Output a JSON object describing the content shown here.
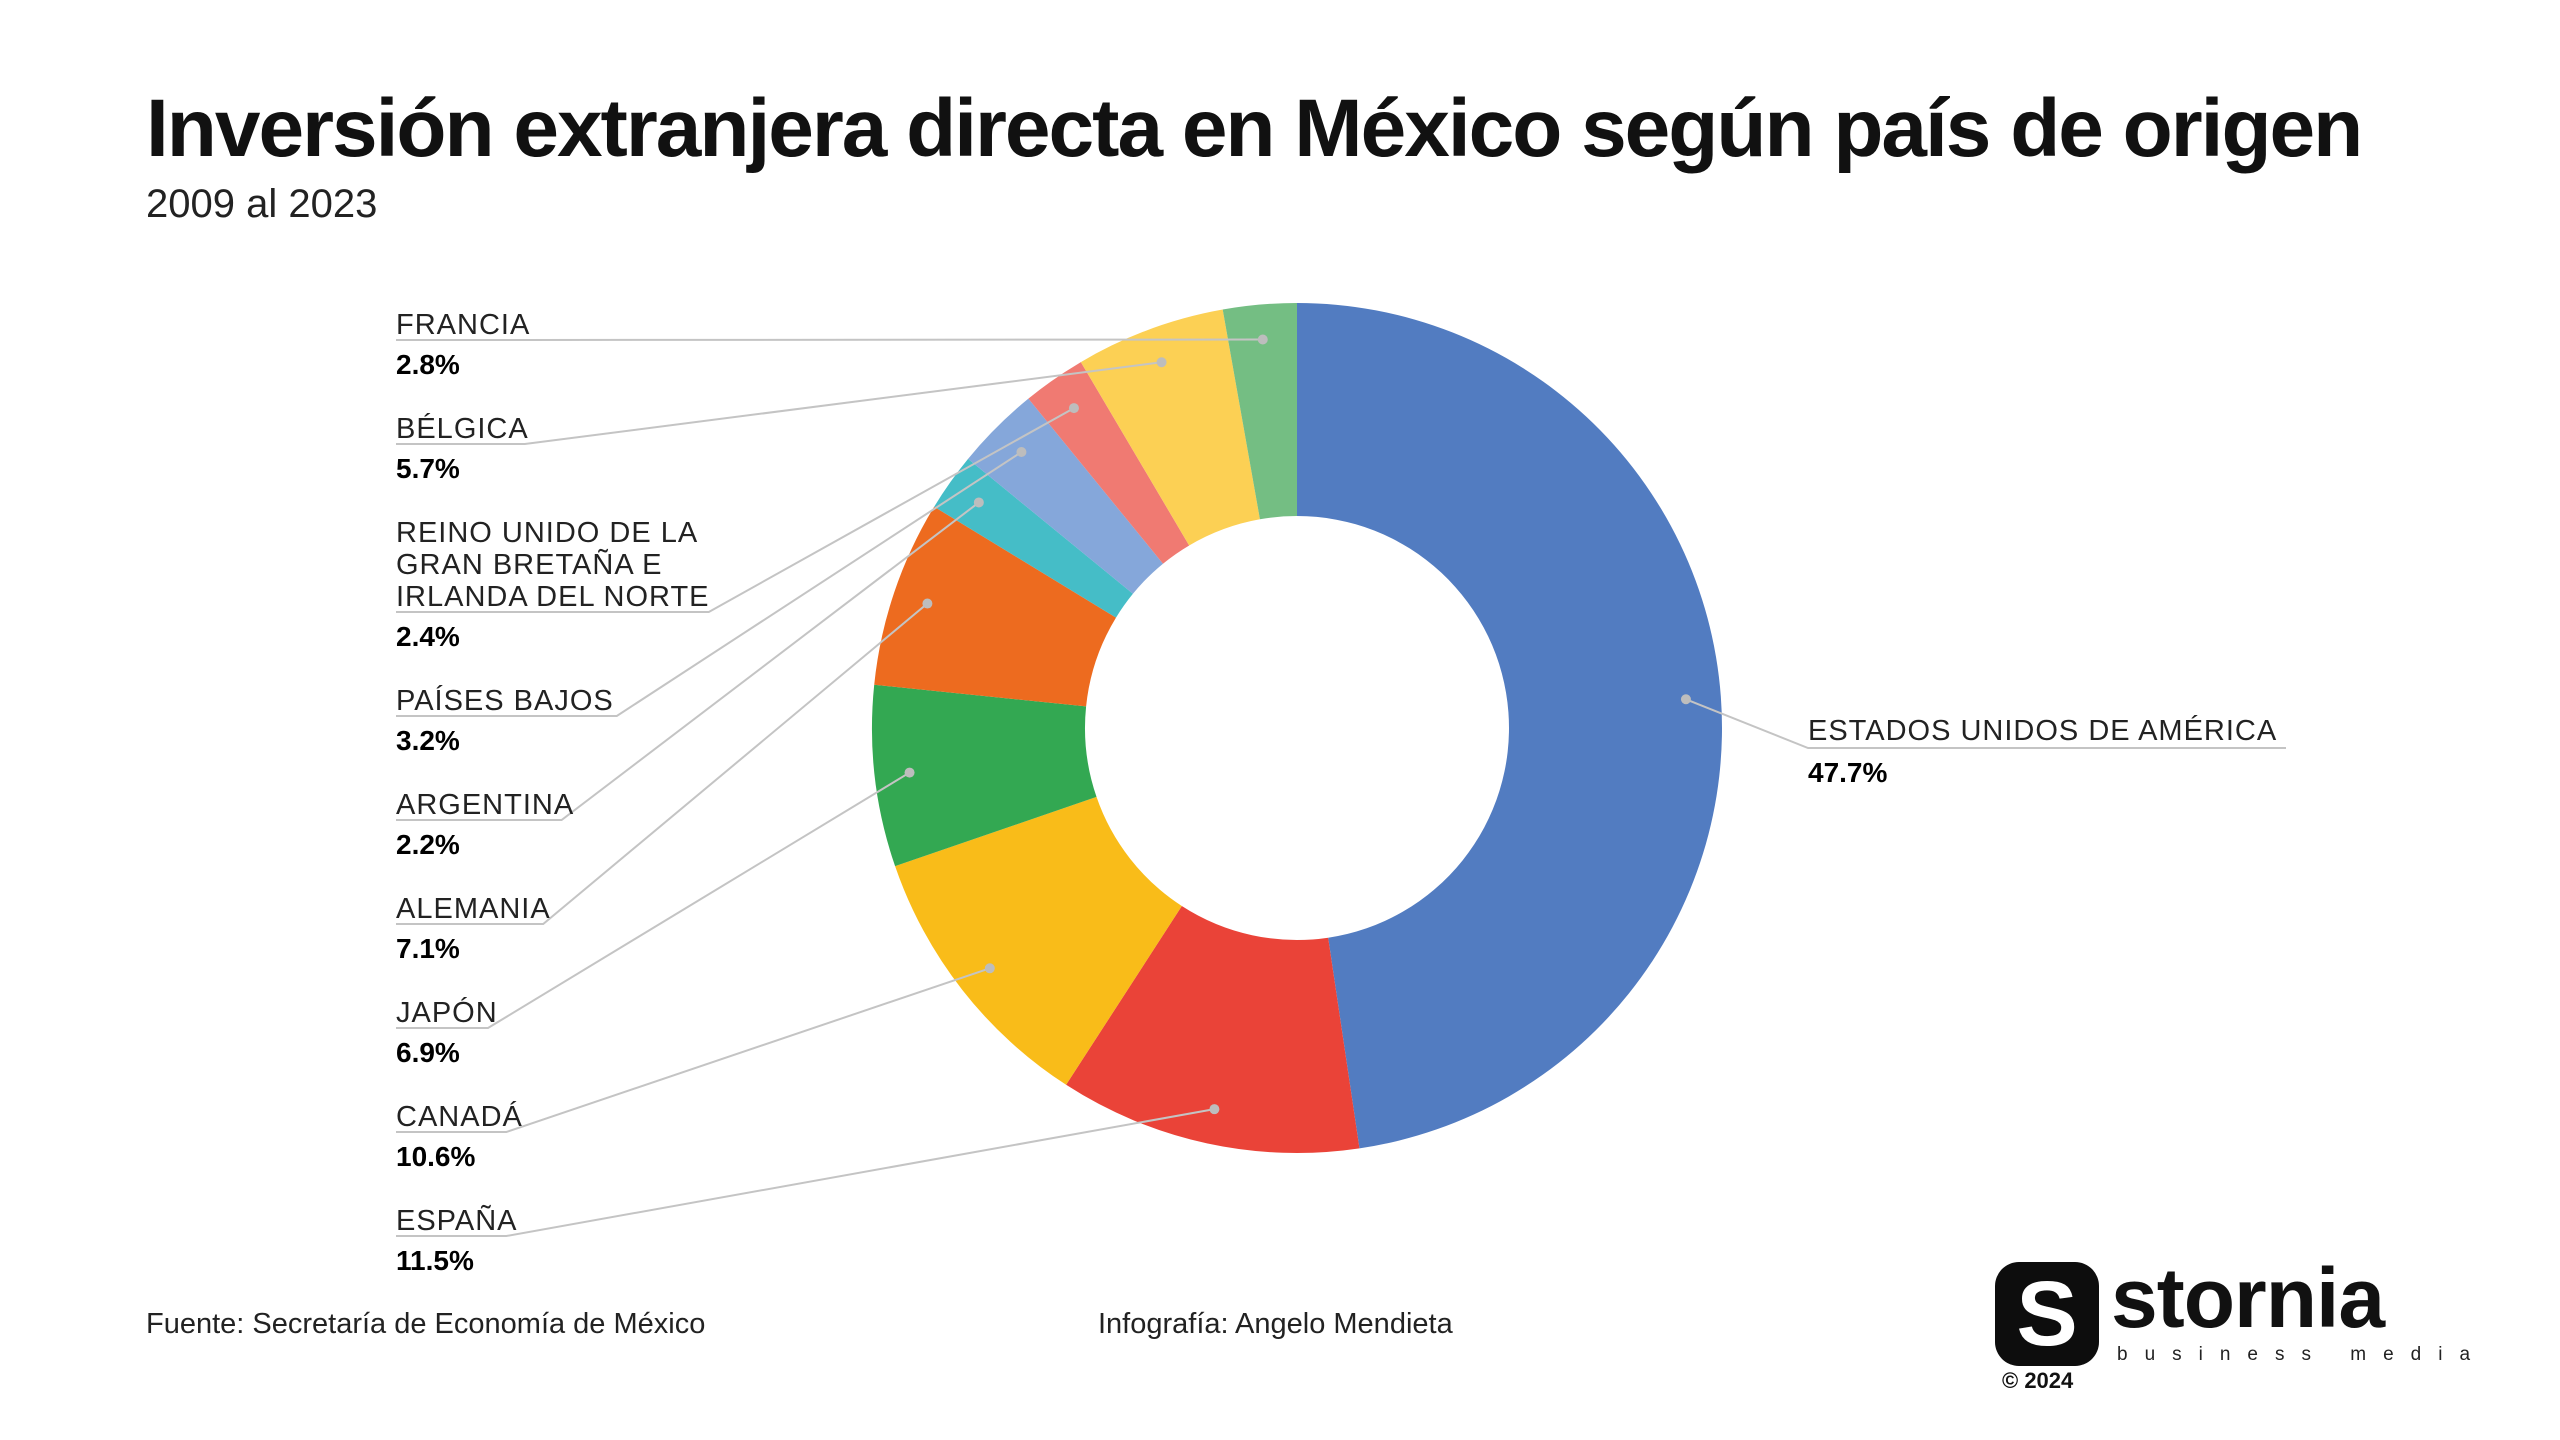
{
  "chart_data": {
    "type": "pie",
    "variant": "donut",
    "title": "Inversión extranjera directa en México según país de origen",
    "subtitle": "2009 al 2023",
    "slices": [
      {
        "label": "ESTADOS UNIDOS DE AMÉRICA",
        "value": 47.7,
        "display": "47.7%",
        "color": "#527cc1"
      },
      {
        "label": "ESPAÑA",
        "value": 11.5,
        "display": "11.5%",
        "color": "#ea4338"
      },
      {
        "label": "CANADÁ",
        "value": 10.6,
        "display": "10.6%",
        "color": "#f9bc19"
      },
      {
        "label": "JAPÓN",
        "value": 6.9,
        "display": "6.9%",
        "color": "#33a852"
      },
      {
        "label": "ALEMANIA",
        "value": 7.1,
        "display": "7.1%",
        "color": "#ed6b1f"
      },
      {
        "label": "ARGENTINA",
        "value": 2.2,
        "display": "2.2%",
        "color": "#45bdc7"
      },
      {
        "label": "PAÍSES BAJOS",
        "value": 3.2,
        "display": "3.2%",
        "color": "#85a7da"
      },
      {
        "label": "REINO UNIDO DE LA GRAN BRETAÑA E IRLANDA DEL NORTE",
        "lines": [
          "REINO UNIDO DE LA",
          "GRAN BRETAÑA E",
          "IRLANDA DEL NORTE"
        ],
        "value": 2.4,
        "display": "2.4%",
        "color": "#f07a72"
      },
      {
        "label": "BÉLGICA",
        "value": 5.7,
        "display": "5.7%",
        "color": "#fcd054"
      },
      {
        "label": "FRANCIA",
        "value": 2.8,
        "display": "2.8%",
        "color": "#74be83"
      }
    ]
  },
  "footer": {
    "source": "Fuente: Secretaría de Economía de México",
    "credit": "Infografía: Angelo Mendieta",
    "copyright": "© 2024"
  },
  "logo": {
    "wordmark": "stornia",
    "tagline": "business media",
    "mark_glyph": "S"
  }
}
